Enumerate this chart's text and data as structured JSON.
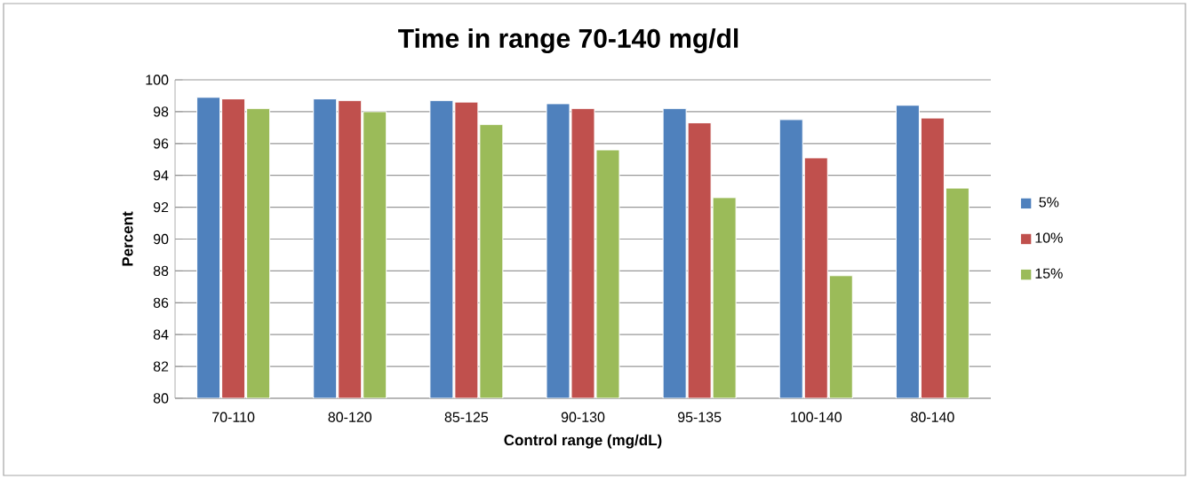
{
  "chart_data": {
    "type": "bar",
    "title": "Time in range 70-140 mg/dl",
    "xlabel": "Control range (mg/dL)",
    "ylabel": "Percent",
    "categories": [
      "70-110",
      "80-120",
      "85-125",
      "90-130",
      "95-135",
      "100-140",
      "80-140"
    ],
    "series": [
      {
        "name": "5%",
        "color": "#4f81bd",
        "values": [
          98.9,
          98.8,
          98.7,
          98.5,
          98.2,
          97.5,
          98.4
        ]
      },
      {
        "name": "10%",
        "color": "#c0504d",
        "values": [
          98.8,
          98.7,
          98.6,
          98.2,
          97.3,
          95.1,
          97.6
        ]
      },
      {
        "name": "15%",
        "color": "#9bbb59",
        "values": [
          98.2,
          98.0,
          97.2,
          95.6,
          92.6,
          87.7,
          93.2
        ]
      }
    ],
    "ylim": [
      80,
      100
    ],
    "yticks": [
      80,
      82,
      84,
      86,
      88,
      90,
      92,
      94,
      96,
      98,
      100
    ],
    "grid": "y",
    "legend": "right"
  }
}
